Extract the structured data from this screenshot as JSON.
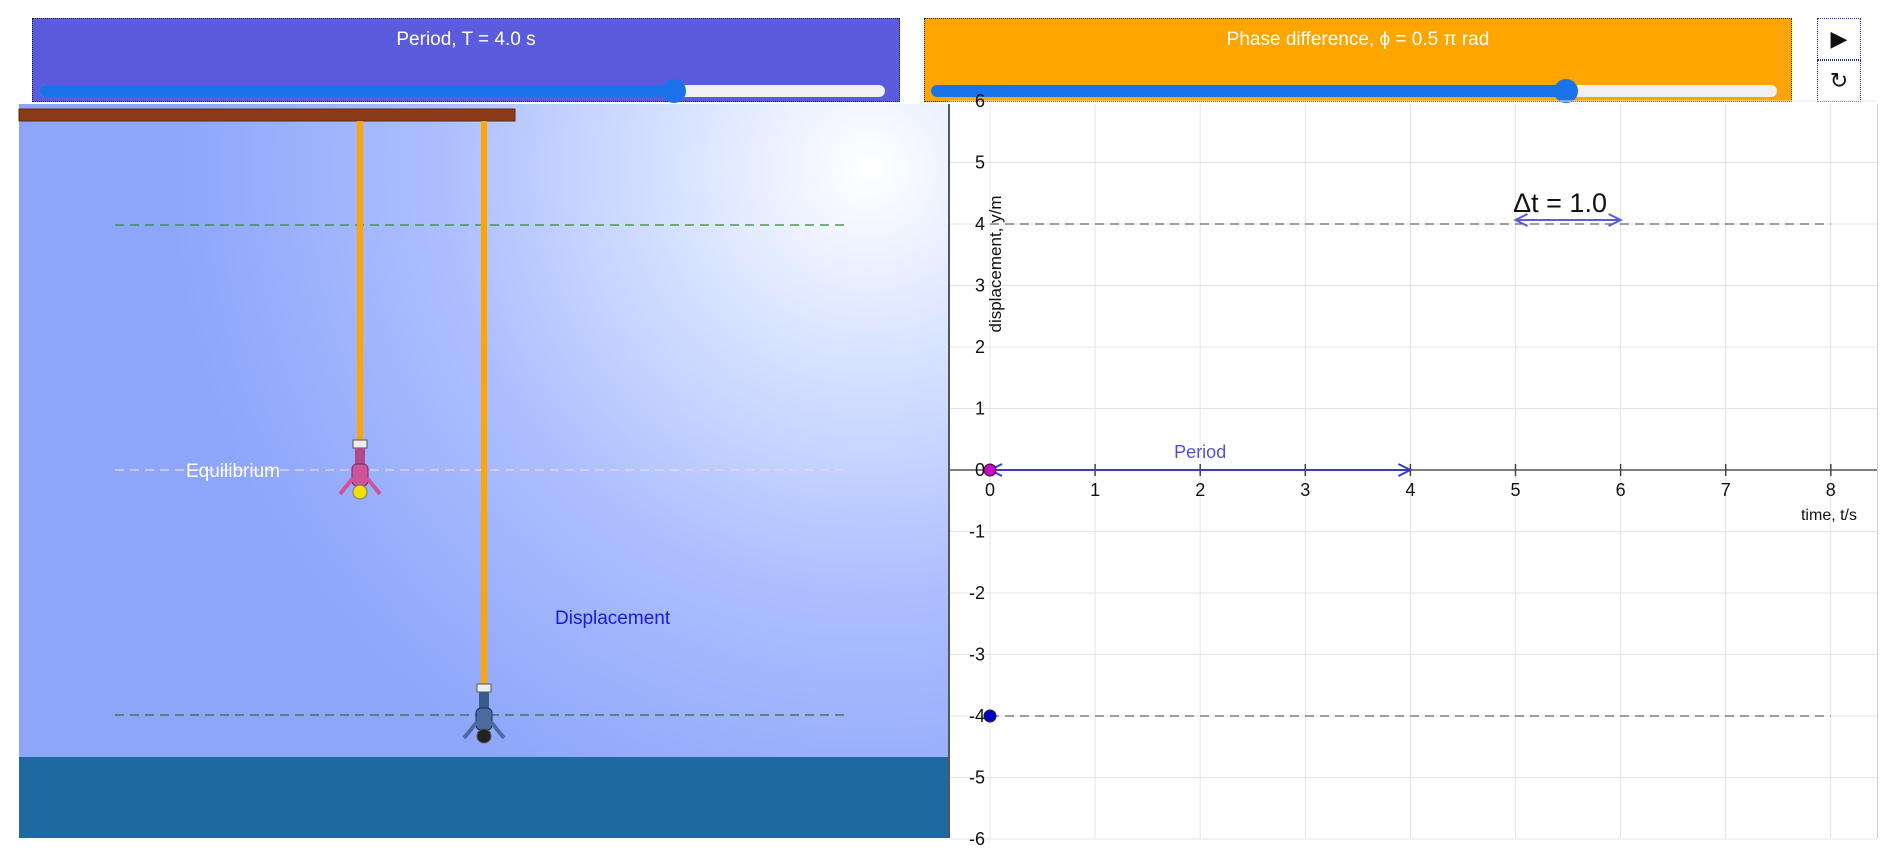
{
  "period_slider": {
    "label": "Period, T = 4.0 s",
    "level": 0.75,
    "color": "#5b5bdd"
  },
  "phase_slider": {
    "label": "Phase difference, ϕ = 0.5 π rad",
    "level": 0.75,
    "color": "#ffa500"
  },
  "controls": {
    "play": "▶",
    "reset": "↻"
  },
  "scene": {
    "equilibrium_label": "Equilibrium",
    "displacement_label": "Displacement",
    "water_color": "#1e6aa0",
    "rope_color": "#ffa500",
    "beam_color": "#8b3a1a"
  },
  "chart_data": {
    "type": "line",
    "xlabel": "time, t/s",
    "ylabel": "displacement, y/m",
    "xlim": [
      0,
      8
    ],
    "ylim": [
      -6,
      6
    ],
    "x_ticks": [
      "0",
      "1",
      "2",
      "3",
      "4",
      "5",
      "6",
      "7",
      "8"
    ],
    "y_ticks": [
      "6",
      "5",
      "4",
      "3",
      "2",
      "1",
      "0",
      "-1",
      "-2",
      "-3",
      "-4",
      "-5",
      "-6"
    ],
    "grid": true,
    "amplitude_lines": [
      4,
      -4
    ],
    "period_annotation": {
      "label": "Period",
      "from": 0,
      "to": 4,
      "y": 0
    },
    "delta_t_annotation": {
      "label": "Δt = 1.0",
      "from": 5,
      "to": 6,
      "y": 4
    },
    "points": [
      {
        "x": 0,
        "y": 0,
        "color": "#cc00cc"
      },
      {
        "x": 0,
        "y": -4,
        "color": "#0000cc"
      }
    ]
  }
}
